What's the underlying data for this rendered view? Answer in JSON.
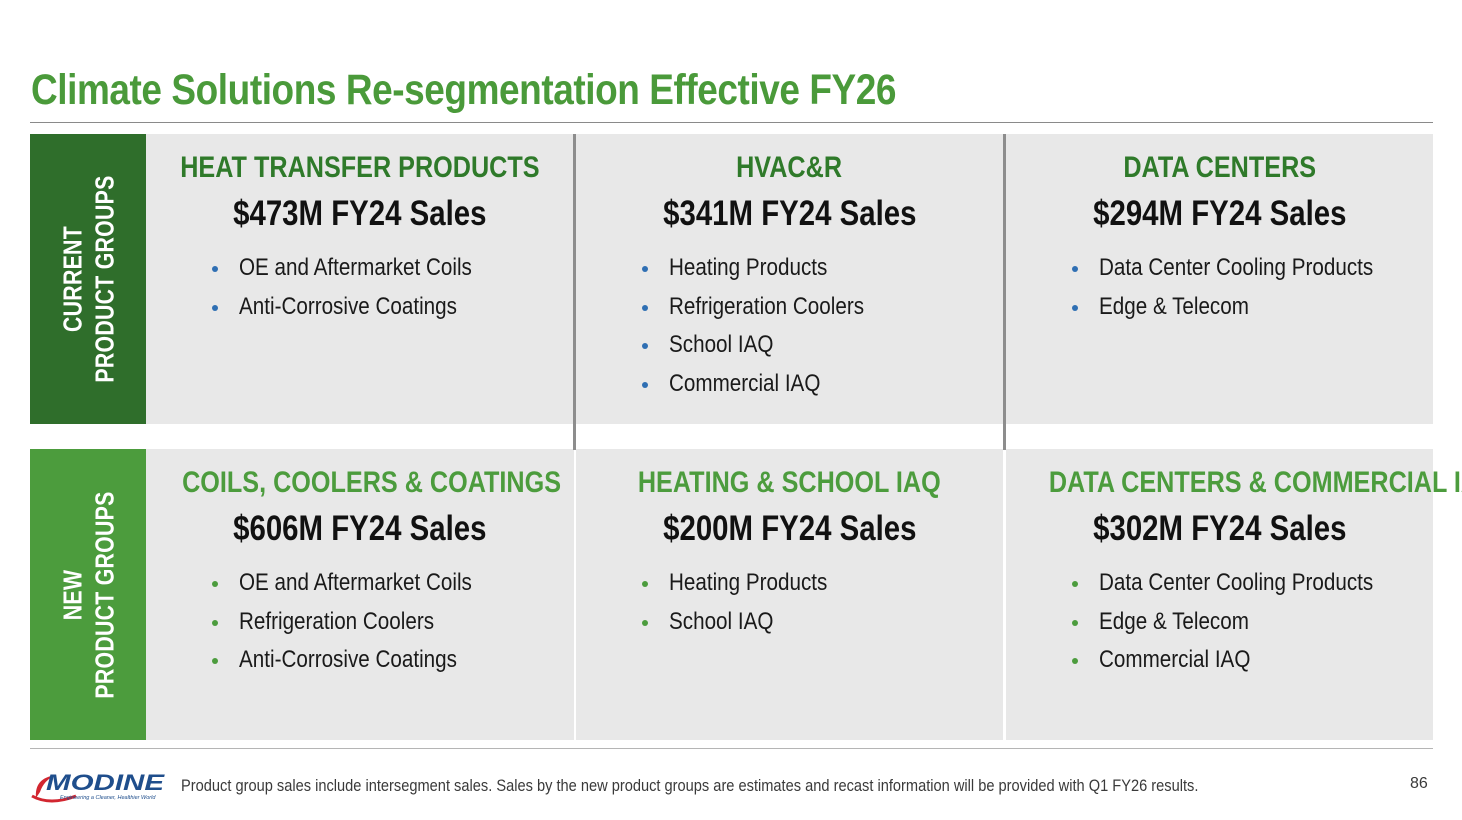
{
  "title": "Climate Solutions Re-segmentation Effective FY26",
  "row_labels": {
    "current": [
      "CURRENT",
      "PRODUCT GROUPS"
    ],
    "new": [
      "NEW",
      "PRODUCT GROUPS"
    ]
  },
  "current_groups": [
    {
      "heading": "HEAT TRANSFER PRODUCTS",
      "sales": "$473M FY24 Sales",
      "items": [
        "OE and Aftermarket Coils",
        "Anti-Corrosive Coatings"
      ]
    },
    {
      "heading": "HVAC&R",
      "sales": "$341M FY24 Sales",
      "items": [
        "Heating Products",
        "Refrigeration Coolers",
        "School IAQ",
        "Commercial IAQ"
      ]
    },
    {
      "heading": "DATA CENTERS",
      "sales": "$294M FY24 Sales",
      "items": [
        "Data Center Cooling Products",
        "Edge & Telecom"
      ]
    }
  ],
  "new_groups": [
    {
      "heading": "COILS, COOLERS & COATINGS",
      "sales": "$606M FY24 Sales",
      "items": [
        "OE and Aftermarket Coils",
        "Refrigeration Coolers",
        "Anti-Corrosive Coatings"
      ]
    },
    {
      "heading": "HEATING & SCHOOL IAQ",
      "sales": "$200M FY24 Sales",
      "items": [
        "Heating Products",
        "School IAQ"
      ]
    },
    {
      "heading": "DATA CENTERS & COMMERCIAL IAQ",
      "sales": "$302M FY24 Sales",
      "items": [
        "Data Center Cooling Products",
        "Edge & Telecom",
        "Commercial IAQ"
      ]
    }
  ],
  "footer": {
    "logo_text": "MODINE",
    "logo_tagline": "Engineering a Cleaner, Healthier World",
    "note": "Product group sales include intersegment sales.  Sales by the new product groups are estimates and recast information will be provided with Q1 FY26 results.",
    "page_number": "86"
  },
  "colors": {
    "title_green": "#4a9a3a",
    "current_label_bg": "#2f6e2b",
    "new_label_bg": "#4c9c3d",
    "panel_bg": "#e8e8e8",
    "current_bullet": "#2f6fb3",
    "new_bullet": "#4c9c3d",
    "logo_blue": "#1f4e8c",
    "logo_red": "#d22630"
  }
}
